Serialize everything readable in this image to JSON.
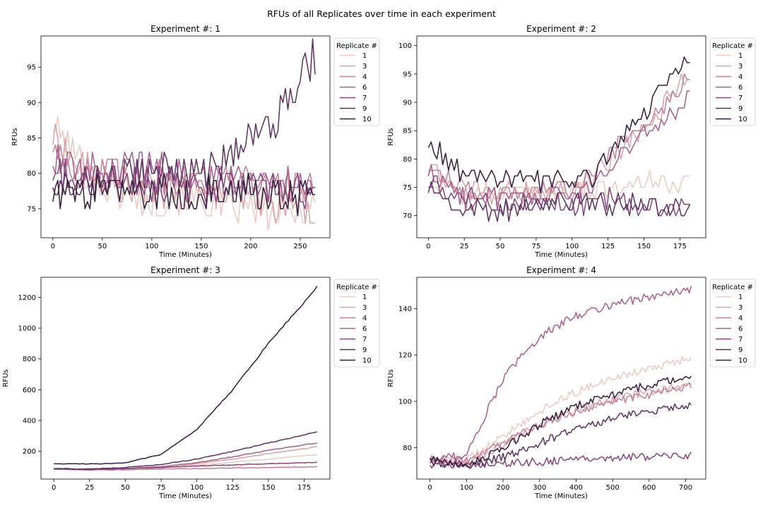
{
  "figure": {
    "suptitle": "RFUs of all Replicates over time in each experiment",
    "legend_title": "Replicate #",
    "replicate_labels": [
      "1",
      "3",
      "4",
      "6",
      "7",
      "9",
      "10"
    ],
    "replicate_colors": [
      "#ecc9c1",
      "#dba3a5",
      "#c57f97",
      "#a95f8d",
      "#87467d",
      "#5e3061",
      "#361c3d"
    ]
  },
  "chart_data": [
    {
      "type": "line",
      "title": "Experiment #: 1",
      "xlabel": "Time (Minutes)",
      "ylabel": "RFUs",
      "xlim": [
        -12,
        280
      ],
      "ylim": [
        70.9,
        99.4
      ],
      "xticks": [
        0,
        50,
        100,
        150,
        200,
        250
      ],
      "yticks": [
        75,
        80,
        85,
        90,
        95
      ],
      "legend_loc": "outside right",
      "grid": false,
      "series": [
        {
          "name": "1",
          "x": [
            0,
            25,
            50,
            75,
            100,
            125,
            150,
            175,
            200,
            225,
            250,
            265
          ],
          "y": [
            87,
            82,
            78,
            77,
            76,
            77,
            76,
            75,
            75,
            74,
            75,
            76
          ]
        },
        {
          "name": "3",
          "x": [
            0,
            25,
            50,
            75,
            100,
            125,
            150,
            175,
            200,
            225,
            250,
            265
          ],
          "y": [
            85,
            81,
            79,
            78,
            78,
            77,
            77,
            77,
            76,
            76,
            76,
            75
          ]
        },
        {
          "name": "4",
          "x": [
            0,
            25,
            50,
            75,
            100,
            125,
            150,
            175,
            200,
            225,
            250,
            265
          ],
          "y": [
            84,
            80,
            80,
            80,
            80,
            79,
            79,
            79,
            79,
            78,
            78,
            78
          ]
        },
        {
          "name": "6",
          "x": [
            0,
            25,
            50,
            75,
            100,
            125,
            150,
            175,
            200,
            225,
            250,
            265
          ],
          "y": [
            82,
            80,
            80,
            81,
            81,
            80,
            80,
            79,
            79,
            79,
            79,
            79
          ]
        },
        {
          "name": "7",
          "x": [
            0,
            25,
            50,
            75,
            100,
            125,
            150,
            175,
            200,
            225,
            250,
            265
          ],
          "y": [
            80,
            79,
            79,
            79,
            79,
            79,
            78,
            78,
            78,
            78,
            78,
            78
          ]
        },
        {
          "name": "9",
          "x": [
            0,
            25,
            50,
            75,
            100,
            125,
            150,
            175,
            200,
            225,
            250,
            265
          ],
          "y": [
            79,
            79,
            79,
            80,
            80,
            80,
            80,
            82,
            85,
            88,
            93,
            97
          ]
        },
        {
          "name": "10",
          "x": [
            0,
            25,
            50,
            75,
            100,
            125,
            150,
            175,
            200,
            225,
            250,
            265
          ],
          "y": [
            77,
            77,
            77,
            77,
            77,
            77,
            77,
            77,
            77,
            77,
            77,
            77
          ]
        }
      ]
    },
    {
      "type": "line",
      "title": "Experiment #: 2",
      "xlabel": "Time (Minutes)",
      "ylabel": "RFUs",
      "xlim": [
        -8,
        193
      ],
      "ylim": [
        66.1,
        101.7
      ],
      "xticks": [
        0,
        25,
        50,
        75,
        100,
        125,
        150,
        175
      ],
      "yticks": [
        70,
        75,
        80,
        85,
        90,
        95,
        100
      ],
      "legend_loc": "outside right",
      "grid": false,
      "series": [
        {
          "name": "1",
          "x": [
            0,
            25,
            50,
            75,
            100,
            115,
            125,
            150,
            175,
            183
          ],
          "y": [
            76,
            74,
            74,
            74,
            75,
            74,
            75,
            76,
            76,
            76
          ]
        },
        {
          "name": "3",
          "x": [
            0,
            25,
            50,
            75,
            100,
            115,
            125,
            150,
            175,
            183
          ],
          "y": [
            78,
            75,
            74,
            74,
            75,
            77,
            80,
            85,
            93,
            95
          ]
        },
        {
          "name": "4",
          "x": [
            0,
            25,
            50,
            75,
            100,
            115,
            125,
            150,
            175,
            183
          ],
          "y": [
            79,
            74,
            74,
            74,
            75,
            77,
            81,
            86,
            93,
            96
          ]
        },
        {
          "name": "6",
          "x": [
            0,
            25,
            50,
            75,
            100,
            115,
            125,
            150,
            175,
            183
          ],
          "y": [
            78,
            73,
            73,
            73,
            74,
            75,
            79,
            84,
            89,
            91
          ]
        },
        {
          "name": "7",
          "x": [
            0,
            25,
            50,
            75,
            100,
            115,
            125,
            150,
            175,
            183
          ],
          "y": [
            76,
            73,
            72,
            72,
            72,
            72,
            73,
            72,
            72,
            71
          ]
        },
        {
          "name": "9",
          "x": [
            0,
            25,
            50,
            75,
            100,
            115,
            125,
            150,
            175,
            183
          ],
          "y": [
            75,
            71,
            71,
            72,
            72,
            73,
            72,
            72,
            71,
            72
          ]
        },
        {
          "name": "10",
          "x": [
            0,
            25,
            50,
            75,
            100,
            115,
            125,
            150,
            175,
            183
          ],
          "y": [
            83,
            77,
            76,
            76,
            76,
            77,
            81,
            88,
            96,
            99
          ]
        }
      ]
    },
    {
      "type": "line",
      "title": "Experiment #: 3",
      "xlabel": "Time (Minutes)",
      "ylabel": "RFUs",
      "xlim": [
        -9,
        193
      ],
      "ylim": [
        20,
        1330
      ],
      "xticks": [
        0,
        25,
        50,
        75,
        100,
        125,
        150,
        175
      ],
      "yticks": [
        200,
        400,
        600,
        800,
        1000,
        1200
      ],
      "legend_loc": "outside right",
      "grid": false,
      "series": [
        {
          "name": "1",
          "x": [
            0,
            25,
            50,
            75,
            100,
            125,
            150,
            184
          ],
          "y": [
            85,
            80,
            85,
            95,
            110,
            130,
            150,
            180
          ]
        },
        {
          "name": "3",
          "x": [
            0,
            25,
            50,
            75,
            100,
            125,
            150,
            184
          ],
          "y": [
            85,
            80,
            88,
            100,
            120,
            150,
            185,
            230
          ]
        },
        {
          "name": "4",
          "x": [
            0,
            25,
            50,
            75,
            100,
            125,
            150,
            184
          ],
          "y": [
            85,
            80,
            80,
            85,
            88,
            92,
            95,
            100
          ]
        },
        {
          "name": "6",
          "x": [
            0,
            25,
            50,
            75,
            100,
            125,
            150,
            184
          ],
          "y": [
            85,
            80,
            88,
            100,
            125,
            165,
            205,
            255
          ]
        },
        {
          "name": "7",
          "x": [
            0,
            25,
            50,
            75,
            100,
            125,
            150,
            184
          ],
          "y": [
            88,
            82,
            88,
            95,
            105,
            112,
            120,
            130
          ]
        },
        {
          "name": "9",
          "x": [
            0,
            25,
            50,
            75,
            100,
            125,
            150,
            184
          ],
          "y": [
            88,
            85,
            95,
            115,
            150,
            200,
            255,
            325
          ]
        },
        {
          "name": "10",
          "x": [
            0,
            25,
            50,
            75,
            100,
            125,
            150,
            184
          ],
          "y": [
            120,
            118,
            125,
            180,
            340,
            600,
            900,
            1265
          ]
        }
      ]
    },
    {
      "type": "line",
      "title": "Experiment #: 4",
      "xlabel": "Time (Minutes)",
      "ylabel": "RFUs",
      "xlim": [
        -36,
        755
      ],
      "ylim": [
        66.5,
        153.5
      ],
      "xticks": [
        0,
        100,
        200,
        300,
        400,
        500,
        600,
        700
      ],
      "yticks": [
        80,
        100,
        120,
        140
      ],
      "legend_loc": "outside right",
      "grid": false,
      "series": [
        {
          "name": "1",
          "x": [
            0,
            100,
            200,
            300,
            400,
            500,
            600,
            715
          ],
          "y": [
            74,
            75,
            85,
            96,
            104,
            110,
            114,
            119
          ]
        },
        {
          "name": "3",
          "x": [
            0,
            100,
            200,
            300,
            400,
            500,
            600,
            715
          ],
          "y": [
            74,
            74,
            81,
            90,
            96,
            101,
            104,
            108
          ]
        },
        {
          "name": "4",
          "x": [
            0,
            100,
            200,
            300,
            400,
            500,
            600,
            715
          ],
          "y": [
            75,
            75,
            82,
            90,
            95,
            100,
            103,
            107
          ]
        },
        {
          "name": "6",
          "x": [
            0,
            100,
            200,
            300,
            400,
            500,
            600,
            715
          ],
          "y": [
            75,
            77,
            110,
            128,
            137,
            142,
            145,
            148
          ]
        },
        {
          "name": "7",
          "x": [
            0,
            100,
            200,
            300,
            400,
            500,
            600,
            715
          ],
          "y": [
            73,
            73,
            73,
            74,
            75,
            76,
            76,
            77
          ]
        },
        {
          "name": "9",
          "x": [
            0,
            100,
            200,
            300,
            400,
            500,
            600,
            715
          ],
          "y": [
            74,
            72,
            76,
            82,
            88,
            93,
            96,
            98
          ]
        },
        {
          "name": "10",
          "x": [
            0,
            100,
            200,
            300,
            400,
            500,
            600,
            715
          ],
          "y": [
            76,
            72,
            80,
            90,
            98,
            103,
            107,
            111
          ]
        }
      ]
    }
  ]
}
